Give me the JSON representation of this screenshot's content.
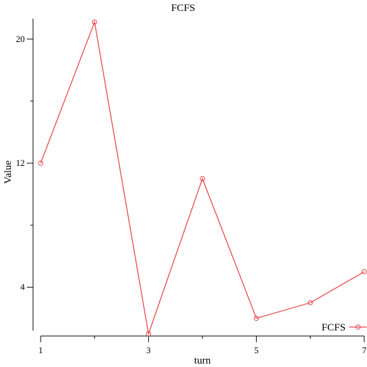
{
  "chart_data": {
    "type": "line",
    "title": "FCFS",
    "xlabel": "turn",
    "ylabel": "Value",
    "x": [
      1,
      2,
      3,
      4,
      5,
      6,
      7
    ],
    "xticks": [
      1,
      3,
      5,
      7
    ],
    "xticks_minor": [
      2,
      4,
      6
    ],
    "yticks": [
      4,
      12,
      20
    ],
    "yticks_minor": [
      8,
      16
    ],
    "xlim": [
      1,
      7
    ],
    "ylim": [
      1.3,
      21.5
    ],
    "grid": false,
    "legend_position": "bottom-right",
    "series": [
      {
        "name": "FCFS",
        "color": "#e8474c",
        "marker": "circle",
        "values": [
          12.0,
          21.1,
          1.0,
          11.0,
          2.0,
          3.0,
          5.0
        ]
      }
    ]
  }
}
